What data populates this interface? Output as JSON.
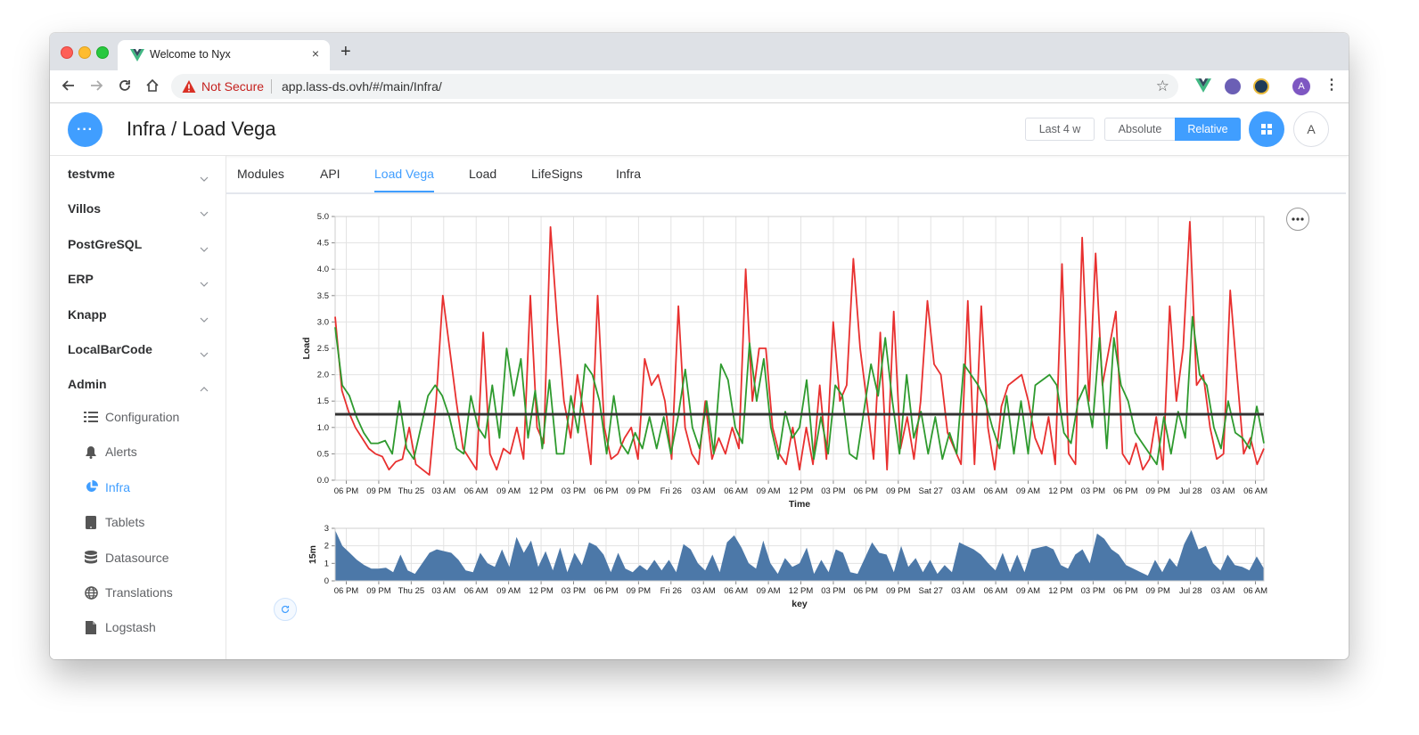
{
  "browser": {
    "tab_title": "Welcome to Nyx",
    "tab_close": "×",
    "new_tab": "+",
    "not_secure": "Not Secure",
    "url": "app.lass-ds.ovh/#/main/Infra/",
    "profile_initial": "A"
  },
  "header": {
    "menu_label": "···",
    "title": "Infra / Load Vega",
    "range_button": "Last 4 w",
    "absolute_button": "Absolute",
    "relative_button": "Relative",
    "avatar_initial": "A",
    "accent_color": "#409eff"
  },
  "sidebar": {
    "groups": [
      {
        "label": "testvme",
        "expanded": false
      },
      {
        "label": "Villos",
        "expanded": false
      },
      {
        "label": "PostGreSQL",
        "expanded": false
      },
      {
        "label": "ERP",
        "expanded": false
      },
      {
        "label": "Knapp",
        "expanded": false
      },
      {
        "label": "LocalBarCode",
        "expanded": false
      },
      {
        "label": "Admin",
        "expanded": true
      }
    ],
    "items": [
      {
        "label": "Configuration",
        "icon": "list-icon"
      },
      {
        "label": "Alerts",
        "icon": "bell-icon"
      },
      {
        "label": "Infra",
        "icon": "pie-chart-icon",
        "active": true
      },
      {
        "label": "Tablets",
        "icon": "tablet-icon"
      },
      {
        "label": "Datasource",
        "icon": "database-icon"
      },
      {
        "label": "Translations",
        "icon": "globe-icon"
      },
      {
        "label": "Logstash",
        "icon": "file-icon"
      }
    ]
  },
  "tabs": [
    "Modules",
    "API",
    "Load Vega",
    "Load",
    "LifeSigns",
    "Infra"
  ],
  "active_tab": "Load Vega",
  "chart_data": [
    {
      "type": "line",
      "xlabel": "Time",
      "ylabel": "Load",
      "ylim": [
        0,
        5
      ],
      "yticks": [
        "0.0",
        "0.5",
        "1.0",
        "1.5",
        "2.0",
        "2.5",
        "3.0",
        "3.5",
        "4.0",
        "4.5",
        "5.0"
      ],
      "xticks": [
        "06 PM",
        "09 PM",
        "Thu 25",
        "03 AM",
        "06 AM",
        "09 AM",
        "12 PM",
        "03 PM",
        "06 PM",
        "09 PM",
        "Fri 26",
        "03 AM",
        "06 AM",
        "09 AM",
        "12 PM",
        "03 PM",
        "06 PM",
        "09 PM",
        "Sat 27",
        "03 AM",
        "06 AM",
        "09 AM",
        "12 PM",
        "03 PM",
        "06 PM",
        "09 PM",
        "Jul 28",
        "03 AM",
        "06 AM"
      ],
      "grid": true,
      "reference_line": 1.25,
      "reference_color": "#333333",
      "series": [
        {
          "color": "#e8302f",
          "values": [
            3.1,
            1.7,
            1.3,
            1.0,
            0.8,
            0.6,
            0.5,
            0.45,
            0.2,
            0.35,
            0.4,
            1.0,
            0.3,
            0.2,
            0.1,
            1.5,
            3.5,
            2.5,
            1.5,
            0.6,
            0.4,
            0.2,
            2.8,
            0.5,
            0.2,
            0.6,
            0.5,
            1.0,
            0.4,
            3.5,
            1.0,
            0.7,
            4.8,
            3.0,
            1.5,
            0.8,
            2.0,
            1.2,
            0.3,
            3.5,
            1.0,
            0.4,
            0.5,
            0.8,
            1.0,
            0.4,
            2.3,
            1.8,
            2.0,
            1.5,
            0.4,
            3.3,
            1.0,
            0.5,
            0.3,
            1.5,
            0.4,
            0.8,
            0.5,
            1.0,
            0.6,
            4.0,
            1.5,
            2.5,
            2.5,
            1.0,
            0.5,
            0.3,
            1.0,
            0.2,
            1.0,
            0.3,
            1.8,
            0.4,
            3.0,
            1.5,
            1.8,
            4.2,
            2.5,
            1.5,
            0.4,
            2.8,
            0.2,
            3.2,
            0.6,
            1.2,
            0.4,
            1.5,
            3.4,
            2.2,
            2.0,
            0.9,
            0.6,
            0.3,
            3.4,
            0.3,
            3.3,
            1.0,
            0.2,
            1.4,
            1.8,
            1.9,
            2.0,
            1.5,
            0.8,
            0.5,
            1.2,
            0.3,
            4.1,
            0.5,
            0.3,
            4.6,
            1.5,
            4.3,
            1.8,
            2.5,
            3.2,
            0.5,
            0.3,
            0.7,
            0.2,
            0.4,
            1.2,
            0.2,
            3.3,
            1.5,
            2.5,
            4.9,
            1.8,
            2.0,
            1.0,
            0.4,
            0.5,
            3.6,
            2.0,
            0.5,
            0.8,
            0.3,
            0.6
          ]
        },
        {
          "color": "#2e9a2e",
          "values": [
            2.9,
            1.8,
            1.6,
            1.2,
            0.9,
            0.7,
            0.7,
            0.75,
            0.5,
            1.5,
            0.6,
            0.4,
            1.0,
            1.6,
            1.8,
            1.6,
            1.2,
            0.6,
            0.5,
            1.6,
            1.0,
            0.8,
            1.8,
            0.8,
            2.5,
            1.6,
            2.3,
            0.8,
            1.7,
            0.6,
            1.9,
            0.5,
            0.5,
            1.6,
            0.9,
            2.2,
            2.0,
            1.5,
            0.5,
            1.6,
            0.7,
            0.5,
            0.9,
            0.6,
            1.2,
            0.6,
            1.2,
            0.5,
            1.2,
            2.1,
            1.0,
            0.6,
            1.5,
            0.5,
            2.2,
            1.9,
            1.0,
            0.7,
            2.6,
            1.5,
            2.3,
            1.0,
            0.4,
            1.3,
            0.8,
            1.0,
            1.9,
            0.4,
            1.2,
            0.5,
            1.8,
            1.6,
            0.5,
            0.4,
            1.3,
            2.2,
            1.6,
            2.7,
            1.5,
            0.5,
            2.0,
            0.8,
            1.3,
            0.5,
            1.2,
            0.4,
            0.9,
            0.5,
            2.2,
            2.0,
            1.8,
            1.5,
            1.0,
            0.6,
            1.6,
            0.5,
            1.5,
            0.5,
            1.8,
            1.9,
            2.0,
            1.8,
            0.9,
            0.7,
            1.5,
            1.8,
            1.0,
            2.7,
            0.6,
            2.7,
            1.8,
            1.5,
            0.9,
            0.7,
            0.5,
            0.3,
            1.2,
            0.5,
            1.3,
            0.8,
            3.1,
            2.0,
            1.8,
            1.0,
            0.6,
            1.5,
            0.9,
            0.8,
            0.6,
            1.4,
            0.7
          ]
        }
      ]
    },
    {
      "type": "area",
      "xlabel": "key",
      "ylabel": "15m",
      "ylim": [
        0,
        3
      ],
      "yticks": [
        "0",
        "1",
        "2",
        "3"
      ],
      "xticks": [
        "06 PM",
        "09 PM",
        "Thu 25",
        "03 AM",
        "06 AM",
        "09 AM",
        "12 PM",
        "03 PM",
        "06 PM",
        "09 PM",
        "Fri 26",
        "03 AM",
        "06 AM",
        "09 AM",
        "12 PM",
        "03 PM",
        "06 PM",
        "09 PM",
        "Sat 27",
        "03 AM",
        "06 AM",
        "09 AM",
        "12 PM",
        "03 PM",
        "06 PM",
        "09 PM",
        "Jul 28",
        "03 AM",
        "06 AM"
      ],
      "color": "#4c78a8",
      "values": [
        2.9,
        2.0,
        1.6,
        1.2,
        0.9,
        0.7,
        0.7,
        0.75,
        0.5,
        1.5,
        0.6,
        0.4,
        1.0,
        1.6,
        1.8,
        1.7,
        1.6,
        1.2,
        0.6,
        0.5,
        1.6,
        1.0,
        0.8,
        1.8,
        0.8,
        2.5,
        1.6,
        2.3,
        0.8,
        1.7,
        0.6,
        1.9,
        0.5,
        1.6,
        0.9,
        2.2,
        2.0,
        1.5,
        0.5,
        1.6,
        0.7,
        0.5,
        0.9,
        0.6,
        1.2,
        0.6,
        1.2,
        0.5,
        2.1,
        1.8,
        1.0,
        0.6,
        1.5,
        0.5,
        2.2,
        2.6,
        1.9,
        1.0,
        0.7,
        2.3,
        1.0,
        0.4,
        1.3,
        0.8,
        1.0,
        1.9,
        0.4,
        1.2,
        0.5,
        1.8,
        1.6,
        0.5,
        0.4,
        1.3,
        2.2,
        1.6,
        1.5,
        0.5,
        2.0,
        0.8,
        1.3,
        0.5,
        1.2,
        0.4,
        0.9,
        0.5,
        2.2,
        2.0,
        1.8,
        1.5,
        1.0,
        0.6,
        1.6,
        0.5,
        1.5,
        0.5,
        1.8,
        1.9,
        2.0,
        1.8,
        0.9,
        0.7,
        1.5,
        1.8,
        1.0,
        2.7,
        2.4,
        1.8,
        1.5,
        0.9,
        0.7,
        0.5,
        0.3,
        1.2,
        0.5,
        1.3,
        0.8,
        2.1,
        2.9,
        1.8,
        2.0,
        1.0,
        0.6,
        1.5,
        0.9,
        0.8,
        0.6,
        1.4,
        0.7
      ]
    }
  ]
}
